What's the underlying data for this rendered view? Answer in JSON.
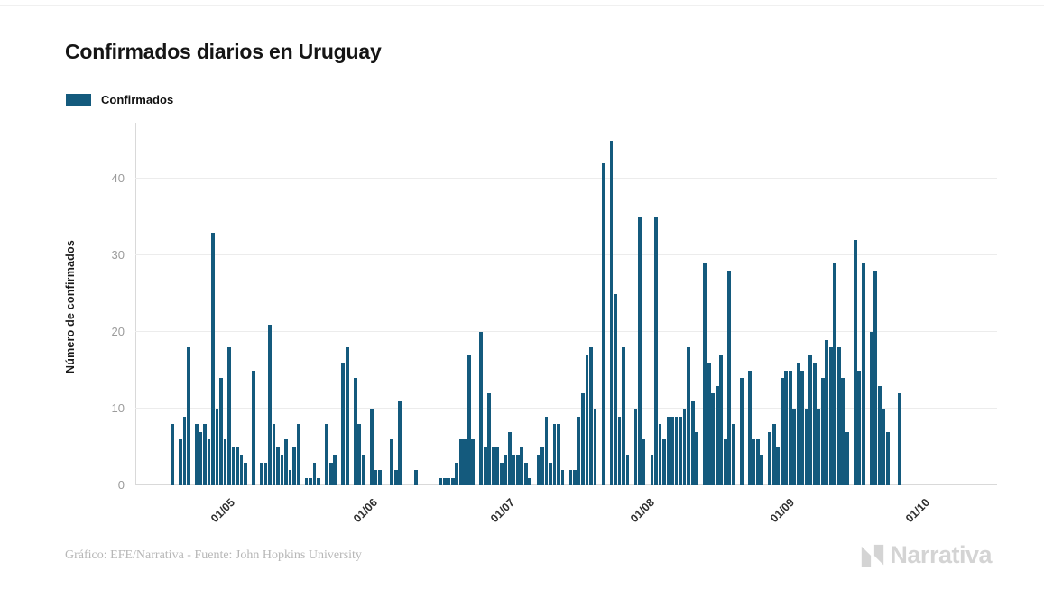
{
  "title": "Confirmados diarios en Uruguay",
  "legend": {
    "label": "Confirmados",
    "swatch_color": "#145A7D"
  },
  "footer": {
    "credit": "Gráfico: EFE/Narrativa - Fuente: John Hopkins University"
  },
  "logo": {
    "text": "Narrativa"
  },
  "colors": {
    "bar": "#145A7D",
    "grid": "#ececec",
    "axis": "#d9d9d9",
    "ytick_text": "#9b9b9b",
    "xtick_text": "#2f2f2f",
    "title_text": "#151515",
    "credit_text": "#b7b7b7",
    "logo_text": "#d4d4d4"
  },
  "chart_data": {
    "type": "bar",
    "title": "Confirmados diarios en Uruguay",
    "xlabel": "",
    "ylabel": "Número de confirmados",
    "ylim": [
      0,
      48
    ],
    "yticks": [
      0,
      10,
      20,
      30,
      40
    ],
    "xticklabels": [
      "01/05",
      "01/06",
      "01/07",
      "01/08",
      "01/09",
      "01/10"
    ],
    "grid": "horizontal",
    "legend_position": "top-left",
    "series": [
      {
        "name": "Confirmados",
        "color": "#145A7D",
        "values": [
          8,
          0,
          6,
          9,
          18,
          0,
          8,
          7,
          8,
          6,
          33,
          10,
          14,
          6,
          18,
          5,
          5,
          4,
          3,
          0,
          15,
          0,
          3,
          3,
          21,
          8,
          5,
          4,
          6,
          2,
          5,
          8,
          0,
          1,
          1,
          3,
          1,
          0,
          8,
          3,
          4,
          0,
          16,
          18,
          0,
          14,
          8,
          4,
          0,
          10,
          2,
          2,
          0,
          0,
          6,
          2,
          11,
          0,
          0,
          0,
          2,
          0,
          0,
          0,
          0,
          0,
          1,
          1,
          1,
          1,
          3,
          6,
          6,
          17,
          6,
          0,
          20,
          5,
          12,
          5,
          5,
          3,
          4,
          7,
          4,
          4,
          5,
          3,
          1,
          0,
          4,
          5,
          9,
          3,
          8,
          8,
          2,
          0,
          2,
          2,
          9,
          12,
          17,
          18,
          10,
          0,
          42,
          0,
          45,
          25,
          9,
          18,
          4,
          0,
          10,
          35,
          6,
          0,
          4,
          35,
          8,
          6,
          9,
          9,
          9,
          9,
          10,
          18,
          11,
          7,
          0,
          29,
          16,
          12,
          13,
          17,
          6,
          28,
          8,
          0,
          14,
          0,
          15,
          6,
          6,
          4,
          0,
          7,
          8,
          5,
          14,
          15,
          15,
          10,
          16,
          15,
          10,
          17,
          16,
          10,
          14,
          19,
          18,
          29,
          18,
          14,
          7,
          0,
          32,
          15,
          29,
          0,
          20,
          28,
          13,
          10,
          7,
          0,
          0,
          12
        ]
      }
    ]
  }
}
